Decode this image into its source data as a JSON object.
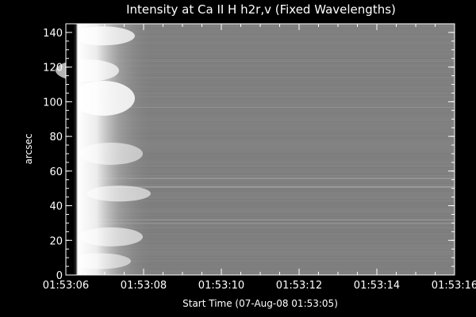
{
  "chart_data": {
    "type": "heatmap",
    "title": "Intensity at Ca II H h2r,v (Fixed Wavelengths)",
    "xlabel": "Start Time (07-Aug-08 01:53:05)",
    "ylabel": "arcsec",
    "x_ticks": [
      "01:53:06",
      "01:53:08",
      "01:53:10",
      "01:53:12",
      "01:53:14",
      "01:53:16"
    ],
    "x_tick_seconds": [
      1,
      3,
      5,
      7,
      9,
      11
    ],
    "xlim_seconds": [
      1,
      11
    ],
    "y_ticks": [
      0,
      20,
      40,
      60,
      80,
      100,
      120,
      140
    ],
    "ylim": [
      0,
      145
    ],
    "colormap": "grayscale",
    "background_color": "#000000",
    "axis_color": "#ffffff"
  }
}
